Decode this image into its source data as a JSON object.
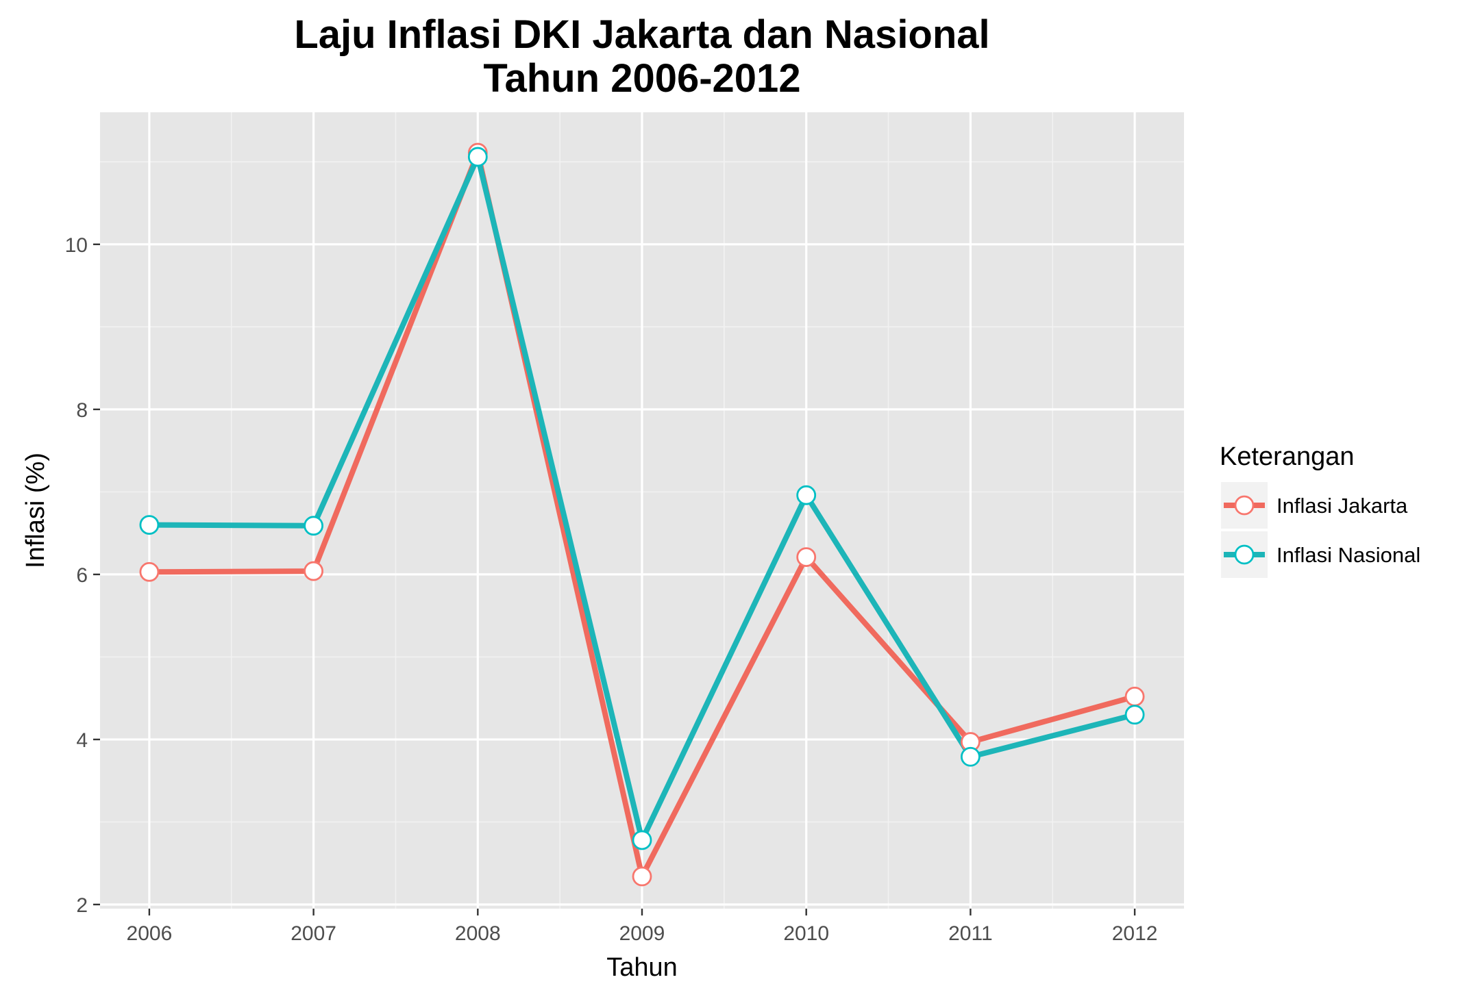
{
  "chart_data": {
    "type": "line",
    "title": [
      "Laju Inflasi DKI Jakarta dan Nasional",
      "Tahun 2006-2012"
    ],
    "xlabel": "Tahun",
    "ylabel": "Inflasi (%)",
    "x": [
      2006,
      2007,
      2008,
      2009,
      2010,
      2011,
      2012
    ],
    "ylim": [
      1.95,
      11.6
    ],
    "yticks": [
      2,
      4,
      6,
      8,
      10
    ],
    "grid": true,
    "legend": {
      "title": "Keterangan",
      "position": "right"
    },
    "series": [
      {
        "name": "Inflasi Jakarta",
        "color": "#F8766D",
        "values": [
          6.03,
          6.04,
          11.11,
          2.34,
          6.21,
          3.97,
          4.52
        ]
      },
      {
        "name": "Inflasi Nasional",
        "color": "#00BFC4",
        "values": [
          6.6,
          6.59,
          11.06,
          2.78,
          6.96,
          3.79,
          4.3
        ]
      }
    ]
  },
  "colors": {
    "panel_background": "#E6E6E6",
    "grid_major": "#FFFFFF",
    "grid_minor": "#F2F2F2",
    "jakarta_line": "#F06A5E",
    "nasional_line": "#1DB5B8"
  }
}
